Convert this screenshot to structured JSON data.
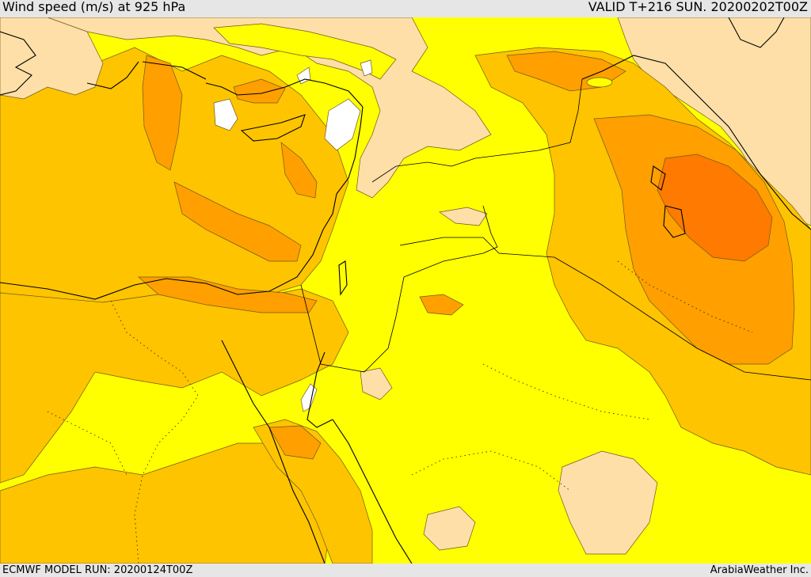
{
  "header": {
    "title": "Wind speed (m/s) at 925 hPa",
    "valid": "VALID T+216 SUN. 20200202T00Z"
  },
  "footer": {
    "model_run": "ECMWF MODEL RUN: 20200124T00Z",
    "credit": "ArabiaWeather Inc."
  },
  "palette": {
    "calm": "#ffffff",
    "light": "#ffdfa8",
    "moderate": "#ffff00",
    "fresh": "#ffc400",
    "strong": "#ff9f00",
    "very_strong": "#ff7a00",
    "coastline": "#000000",
    "contour": "#6e5a1e"
  }
}
